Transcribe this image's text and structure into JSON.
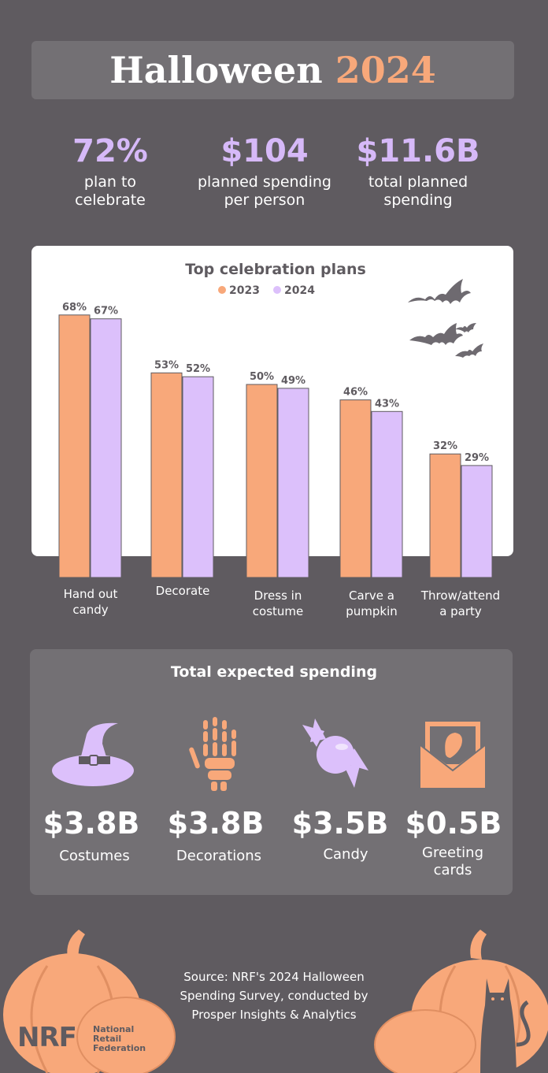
{
  "header": {
    "title_word": "Halloween",
    "title_year": "2024"
  },
  "stats": [
    {
      "value": "72%",
      "label_line1": "plan to",
      "label_line2": "celebrate"
    },
    {
      "value": "$104",
      "label_line1": "planned spending",
      "label_line2": "per person"
    },
    {
      "value": "$11.6B",
      "label_line1": "total planned",
      "label_line2": "spending"
    }
  ],
  "chart_data": {
    "type": "bar",
    "title": "Top celebration plans",
    "categories": [
      "Hand out candy",
      "Decorate",
      "Dress in costume",
      "Carve a pumpkin",
      "Throw/attend a party"
    ],
    "category_lines": [
      [
        "Hand out",
        "candy"
      ],
      [
        "Decorate",
        ""
      ],
      [
        "Dress in",
        "costume"
      ],
      [
        "Carve a",
        "pumpkin"
      ],
      [
        "Throw/attend",
        "a party"
      ]
    ],
    "series": [
      {
        "name": "2023",
        "values": [
          68,
          53,
          50,
          46,
          32
        ],
        "labels": [
          "68%",
          "53%",
          "50%",
          "46%",
          "32%"
        ],
        "color": "#f8a87a"
      },
      {
        "name": "2024",
        "values": [
          67,
          52,
          49,
          43,
          29
        ],
        "labels": [
          "67%",
          "52%",
          "49%",
          "43%",
          "29%"
        ],
        "color": "#dcc0fb"
      }
    ],
    "legend_position": "top-center",
    "grid": false
  },
  "spending": {
    "title": "Total expected spending",
    "items": [
      {
        "value": "$3.8B",
        "label_line1": "Costumes",
        "label_line2": "",
        "icon": "witch-hat-icon"
      },
      {
        "value": "$3.8B",
        "label_line1": "Decorations",
        "label_line2": "",
        "icon": "skeleton-hand-icon"
      },
      {
        "value": "$3.5B",
        "label_line1": "Candy",
        "label_line2": "",
        "icon": "candy-icon"
      },
      {
        "value": "$0.5B",
        "label_line1": "Greeting",
        "label_line2": "cards",
        "icon": "greeting-card-icon"
      }
    ]
  },
  "footer": {
    "source_lines": [
      "Source: NRF's 2024 Halloween",
      "Spending Survey, conducted by",
      "Prosper Insights & Analytics"
    ],
    "logo_letters": "NRF",
    "logo_name_lines": [
      "National",
      "Retail",
      "Federation"
    ]
  },
  "colors": {
    "background": "#5f5b60",
    "panel": "#737074",
    "orange": "#f8a87a",
    "lavender": "#dcc0fb",
    "stat_purple": "#d6b9f8"
  }
}
